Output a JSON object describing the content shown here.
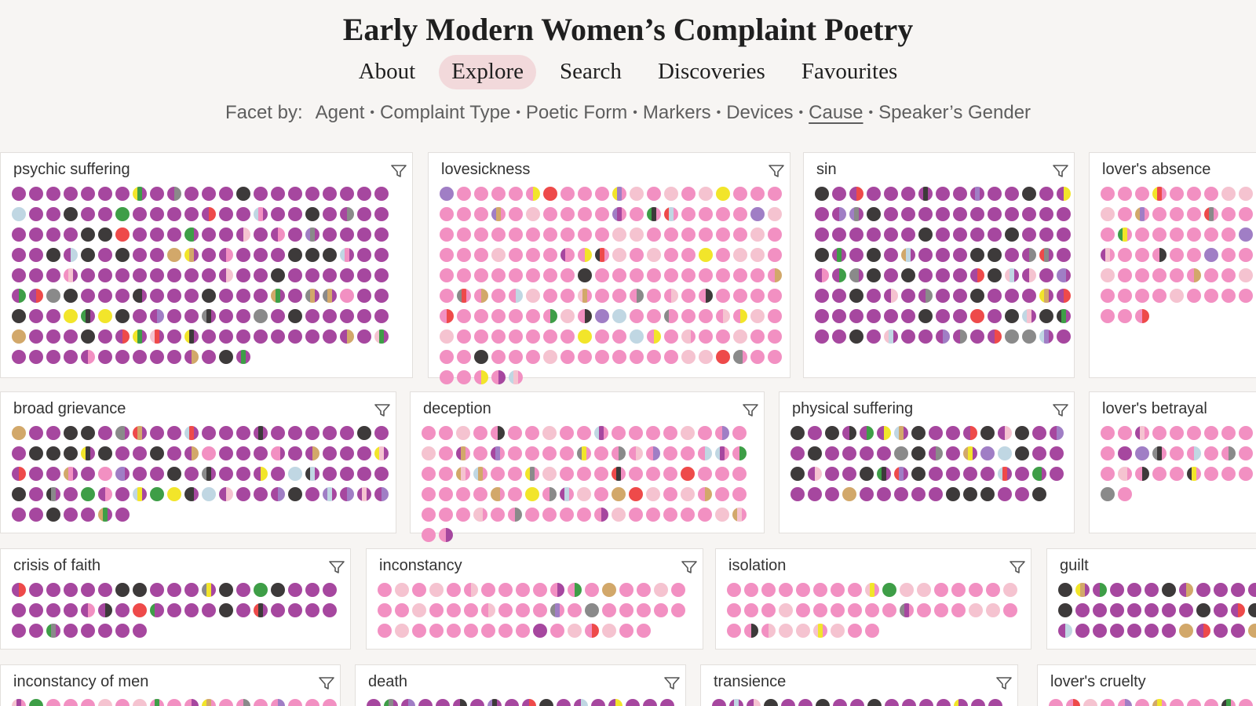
{
  "app": {
    "title": "Early Modern Women’s Complaint Poetry"
  },
  "nav": [
    {
      "label": "About",
      "active": false
    },
    {
      "label": "Explore",
      "active": true
    },
    {
      "label": "Search",
      "active": false
    },
    {
      "label": "Discoveries",
      "active": false
    },
    {
      "label": "Favourites",
      "active": false
    }
  ],
  "facet_bar": {
    "label": "Facet by:",
    "items": [
      {
        "label": "Agent",
        "active": false
      },
      {
        "label": "Complaint Type",
        "active": false
      },
      {
        "label": "Poetic Form",
        "active": false
      },
      {
        "label": "Markers",
        "active": false
      },
      {
        "label": "Devices",
        "active": false
      },
      {
        "label": "Cause",
        "active": true
      },
      {
        "label": "Speaker’s Gender",
        "active": false
      }
    ]
  },
  "colors": {
    "purple": "#a6479f",
    "pink": "#f290c2",
    "light_pink": "#f5c3d0",
    "dark": "#3d3a3a",
    "light_blue": "#c0d7e3",
    "red": "#ee4a4a",
    "green": "#3e9e47",
    "gold": "#d2a86a",
    "yellow": "#f2e52a",
    "gray": "#8a8a8a",
    "violet": "#a07ec5"
  },
  "panels": [
    {
      "title": "psychic suffering",
      "count": 190,
      "dominant": "purple"
    },
    {
      "title": "lovesickness",
      "count": 185,
      "dominant": "pink"
    },
    {
      "title": "sin",
      "count": 120,
      "dominant": "purple"
    },
    {
      "title": "lover's absence",
      "count": 63,
      "dominant": "pink"
    },
    {
      "title": "broad grievance",
      "count": 95,
      "dominant": "purple"
    },
    {
      "title": "deception",
      "count": 97,
      "dominant": "pink"
    },
    {
      "title": "physical suffering",
      "count": 63,
      "dominant": "purple"
    },
    {
      "title": "lover's betrayal",
      "count": 32,
      "dominant": "pink"
    },
    {
      "title": "crisis of faith",
      "count": 46,
      "dominant": "purple"
    },
    {
      "title": "inconstancy",
      "count": 52,
      "dominant": "pink"
    },
    {
      "title": "isolation",
      "count": 43,
      "dominant": "pink"
    },
    {
      "title": "guilt",
      "count": 36,
      "dominant": "purple"
    },
    {
      "title": "inconstancy of men",
      "count": 19,
      "dominant": "pink"
    },
    {
      "title": "death",
      "count": 18,
      "dominant": "purple"
    },
    {
      "title": "transience",
      "count": 18,
      "dominant": "purple"
    },
    {
      "title": "lover's cruelty",
      "count": 13,
      "dominant": "pink"
    }
  ]
}
